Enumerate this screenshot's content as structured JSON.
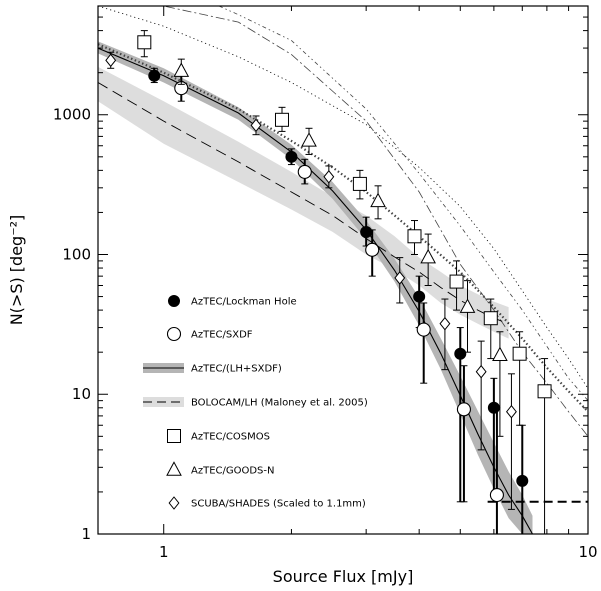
{
  "chart_data": {
    "type": "scatter",
    "xscale": "log",
    "yscale": "log",
    "xlim": [
      0.7,
      10
    ],
    "ylim": [
      1,
      6000
    ],
    "xlabel": "Source Flux [mJy]",
    "ylabel": "N(>S) [deg⁻²]",
    "x_ticks": [
      {
        "v": 1,
        "label": "1"
      },
      {
        "v": 10,
        "label": "10"
      }
    ],
    "y_ticks": [
      {
        "v": 1,
        "label": "1"
      },
      {
        "v": 10,
        "label": "10"
      },
      {
        "v": 100,
        "label": "100"
      },
      {
        "v": 1000,
        "label": "1000"
      }
    ],
    "legend": [
      {
        "key": "lockman",
        "label": "AzTEC/Lockman Hole"
      },
      {
        "key": "sxdf",
        "label": "AzTEC/SXDF"
      },
      {
        "key": "lhsxdf",
        "label": "AzTEC/(LH+SXDF)"
      },
      {
        "key": "bolocam",
        "label": "BOLOCAM/LH (Maloney et al. 2005)"
      },
      {
        "key": "cosmos",
        "label": "AzTEC/COSMOS"
      },
      {
        "key": "goodsn",
        "label": "AzTEC/GOODS-N"
      },
      {
        "key": "shades",
        "label": "SCUBA/SHADES (Scaled to 1.1mm)"
      }
    ],
    "series": [
      {
        "key": "lockman",
        "marker": "filled-circle",
        "points": [
          {
            "x": 0.95,
            "y": 1900,
            "lo": 1700,
            "hi": 2150
          },
          {
            "x": 2.0,
            "y": 500,
            "lo": 440,
            "hi": 570
          },
          {
            "x": 3.0,
            "y": 145,
            "lo": 115,
            "hi": 185
          },
          {
            "x": 4.0,
            "y": 50,
            "lo": 30,
            "hi": 70
          },
          {
            "x": 5.0,
            "y": 19.5,
            "lo": 1.7,
            "hi": 30
          },
          {
            "x": 6.0,
            "y": 8,
            "lo": 1.7,
            "hi": 13
          },
          {
            "x": 7.0,
            "y": 2.4,
            "lo": 1,
            "hi": 6
          }
        ]
      },
      {
        "key": "sxdf",
        "marker": "open-circle",
        "points": [
          {
            "x": 1.1,
            "y": 1550,
            "lo": 1250,
            "hi": 1900
          },
          {
            "x": 2.15,
            "y": 390,
            "lo": 320,
            "hi": 480
          },
          {
            "x": 3.1,
            "y": 108,
            "lo": 70,
            "hi": 150
          },
          {
            "x": 4.1,
            "y": 29,
            "lo": 12,
            "hi": 45
          },
          {
            "x": 5.1,
            "y": 7.8,
            "lo": 1.7,
            "hi": 16
          },
          {
            "x": 6.1,
            "y": 1.9,
            "lo": 1,
            "hi": 8
          }
        ]
      },
      {
        "key": "cosmos",
        "marker": "open-square",
        "points": [
          {
            "x": 0.9,
            "y": 3300,
            "lo": 2600,
            "hi": 4000
          },
          {
            "x": 1.9,
            "y": 920,
            "lo": 760,
            "hi": 1130
          },
          {
            "x": 2.9,
            "y": 320,
            "lo": 250,
            "hi": 400
          },
          {
            "x": 3.9,
            "y": 135,
            "lo": 100,
            "hi": 175
          },
          {
            "x": 4.9,
            "y": 64,
            "lo": 40,
            "hi": 90
          },
          {
            "x": 5.9,
            "y": 35,
            "lo": 18,
            "hi": 48
          },
          {
            "x": 6.9,
            "y": 19.5,
            "lo": 6,
            "hi": 28
          },
          {
            "x": 7.9,
            "y": 10.5,
            "lo": 1,
            "hi": 18
          }
        ]
      },
      {
        "key": "goodsn",
        "marker": "open-triangle",
        "points": [
          {
            "x": 1.1,
            "y": 2050,
            "lo": 1650,
            "hi": 2500
          },
          {
            "x": 2.2,
            "y": 650,
            "lo": 520,
            "hi": 800
          },
          {
            "x": 3.2,
            "y": 240,
            "lo": 180,
            "hi": 310
          },
          {
            "x": 4.2,
            "y": 95,
            "lo": 60,
            "hi": 140
          },
          {
            "x": 5.2,
            "y": 42,
            "lo": 20,
            "hi": 65
          },
          {
            "x": 6.2,
            "y": 19,
            "lo": 5,
            "hi": 28
          }
        ]
      },
      {
        "key": "shades",
        "marker": "open-diamond",
        "points": [
          {
            "x": 0.75,
            "y": 2450,
            "lo": 2150,
            "hi": 2800
          },
          {
            "x": 1.65,
            "y": 840,
            "lo": 720,
            "hi": 980
          },
          {
            "x": 2.45,
            "y": 360,
            "lo": 300,
            "hi": 430
          },
          {
            "x": 3.6,
            "y": 68,
            "lo": 45,
            "hi": 95
          },
          {
            "x": 4.6,
            "y": 32,
            "lo": 15,
            "hi": 48
          },
          {
            "x": 5.6,
            "y": 14.5,
            "lo": 4,
            "hi": 24
          },
          {
            "x": 6.6,
            "y": 7.5,
            "lo": 1.5,
            "hi": 14
          }
        ]
      }
    ],
    "fit_band_lh_sxdf": {
      "x": [
        0.7,
        1.0,
        1.5,
        2.0,
        2.5,
        3.0,
        3.5,
        4.0,
        4.5,
        5.0,
        5.5,
        6.0,
        6.5,
        7.0,
        7.4
      ],
      "y_lo": [
        2750,
        1700,
        920,
        480,
        250,
        128,
        64,
        31,
        15,
        7.2,
        3.7,
        2.1,
        1.3,
        1.0,
        0.75
      ],
      "y_hi": [
        3350,
        2150,
        1130,
        610,
        330,
        175,
        93,
        49,
        25,
        13.5,
        7.6,
        4.5,
        2.8,
        1.9,
        1.35
      ]
    },
    "fit_line_lh_sxdf": {
      "x": [
        0.7,
        1.0,
        1.5,
        2.0,
        2.5,
        3.0,
        3.5,
        4.0,
        4.5,
        5.0,
        5.5,
        6.0,
        6.5,
        7.0,
        7.4
      ],
      "y": [
        3000,
        1900,
        1030,
        540,
        285,
        150,
        77,
        39,
        19.5,
        9.8,
        5.2,
        3.0,
        1.9,
        1.35,
        1.0
      ]
    },
    "bolocam_band": {
      "x": [
        0.7,
        1.0,
        1.5,
        2.0,
        2.5,
        3.0,
        3.5,
        4.0,
        4.5,
        5.0,
        5.5,
        6.0,
        6.5
      ],
      "y_lo": [
        1250,
        620,
        330,
        210,
        145,
        100,
        78,
        60,
        45,
        37,
        32,
        28,
        25
      ],
      "y_hi": [
        2200,
        1250,
        640,
        390,
        260,
        190,
        135,
        95,
        75,
        60,
        52,
        46,
        42
      ]
    },
    "bolocam_line": {
      "x": [
        0.7,
        1.0,
        1.5,
        2.0,
        2.5,
        3.0,
        3.5,
        4.0,
        4.5,
        5.0,
        5.5,
        6.0,
        6.5
      ],
      "y": [
        1700,
        900,
        460,
        280,
        190,
        130,
        96,
        75,
        58,
        47,
        40,
        35,
        32
      ]
    },
    "model_dotted_thick": {
      "x": [
        0.7,
        1.0,
        1.5,
        2.0,
        2.5,
        3.0,
        3.5,
        4.0,
        5.0,
        6.0,
        7.0,
        8.0,
        9.0,
        10.0
      ],
      "y": [
        3200,
        2000,
        1100,
        650,
        420,
        280,
        190,
        135,
        75,
        42,
        25,
        15.5,
        10.5,
        7.5
      ]
    },
    "model_dotted_thin": {
      "x": [
        0.7,
        1.0,
        1.5,
        2.0,
        3.0,
        4.0,
        5.0,
        6.0,
        7.0,
        8.0,
        9.0,
        10.0
      ],
      "y": [
        6000,
        4300,
        2600,
        1700,
        850,
        420,
        220,
        110,
        55,
        30,
        18,
        11
      ]
    },
    "model_dashdot": {
      "x": [
        0.7,
        1.0,
        1.5,
        2.0,
        3.0,
        4.0,
        5.0,
        6.0,
        7.0,
        8.0,
        9.0,
        10.0
      ],
      "y": [
        6000,
        6000,
        4600,
        2700,
        900,
        280,
        85,
        40,
        20,
        12,
        7.5,
        5
      ]
    },
    "model_dashdotdot": {
      "x": [
        1.35,
        1.5,
        2.0,
        3.0,
        4.0,
        5.0,
        6.0,
        7.0,
        8.0,
        9.0,
        10.0
      ],
      "y": [
        6000,
        5200,
        3400,
        1100,
        380,
        160,
        75,
        40,
        22,
        13,
        9
      ]
    },
    "completeness_line": {
      "x1": 5.8,
      "x2": 10,
      "y": 1.7
    }
  }
}
